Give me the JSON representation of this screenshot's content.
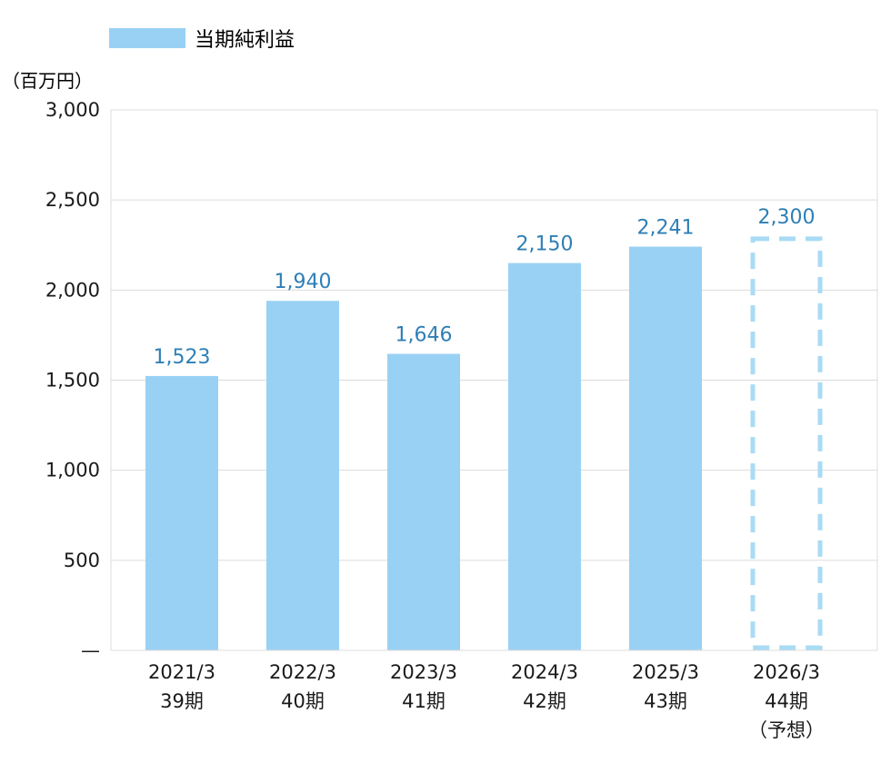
{
  "unit_label": "（百万円）",
  "legend": {
    "label": "当期純利益",
    "color": "#99d1f4"
  },
  "colors": {
    "bar": "#99d1f4",
    "forecast_border": "#a9dbf5",
    "value_label": "#2f7fb5",
    "axis_text": "#1a1a1a",
    "grid": "#dcdcdc"
  },
  "chart_data": {
    "type": "bar",
    "title": "",
    "xlabel": "",
    "ylabel": "（百万円）",
    "ylim": [
      0,
      3000
    ],
    "yticks": [
      {
        "value": 0,
        "label": "—"
      },
      {
        "value": 500,
        "label": "500"
      },
      {
        "value": 1000,
        "label": "1,000"
      },
      {
        "value": 1500,
        "label": "1,500"
      },
      {
        "value": 2000,
        "label": "2,000"
      },
      {
        "value": 2500,
        "label": "2,500"
      },
      {
        "value": 3000,
        "label": "3,000"
      }
    ],
    "grid": true,
    "legend_position": "top-left",
    "categories": [
      {
        "date": "2021/3",
        "period": "39期",
        "note": ""
      },
      {
        "date": "2022/3",
        "period": "40期",
        "note": ""
      },
      {
        "date": "2023/3",
        "period": "41期",
        "note": ""
      },
      {
        "date": "2024/3",
        "period": "42期",
        "note": ""
      },
      {
        "date": "2025/3",
        "period": "43期",
        "note": ""
      },
      {
        "date": "2026/3",
        "period": "44期",
        "note": "（予想）"
      }
    ],
    "series": [
      {
        "name": "当期純利益",
        "values": [
          1523,
          1940,
          1646,
          2150,
          2241,
          2300
        ],
        "value_labels": [
          "1,523",
          "1,940",
          "1,646",
          "2,150",
          "2,241",
          "2,300"
        ],
        "forecast": [
          false,
          false,
          false,
          false,
          false,
          true
        ]
      }
    ]
  }
}
